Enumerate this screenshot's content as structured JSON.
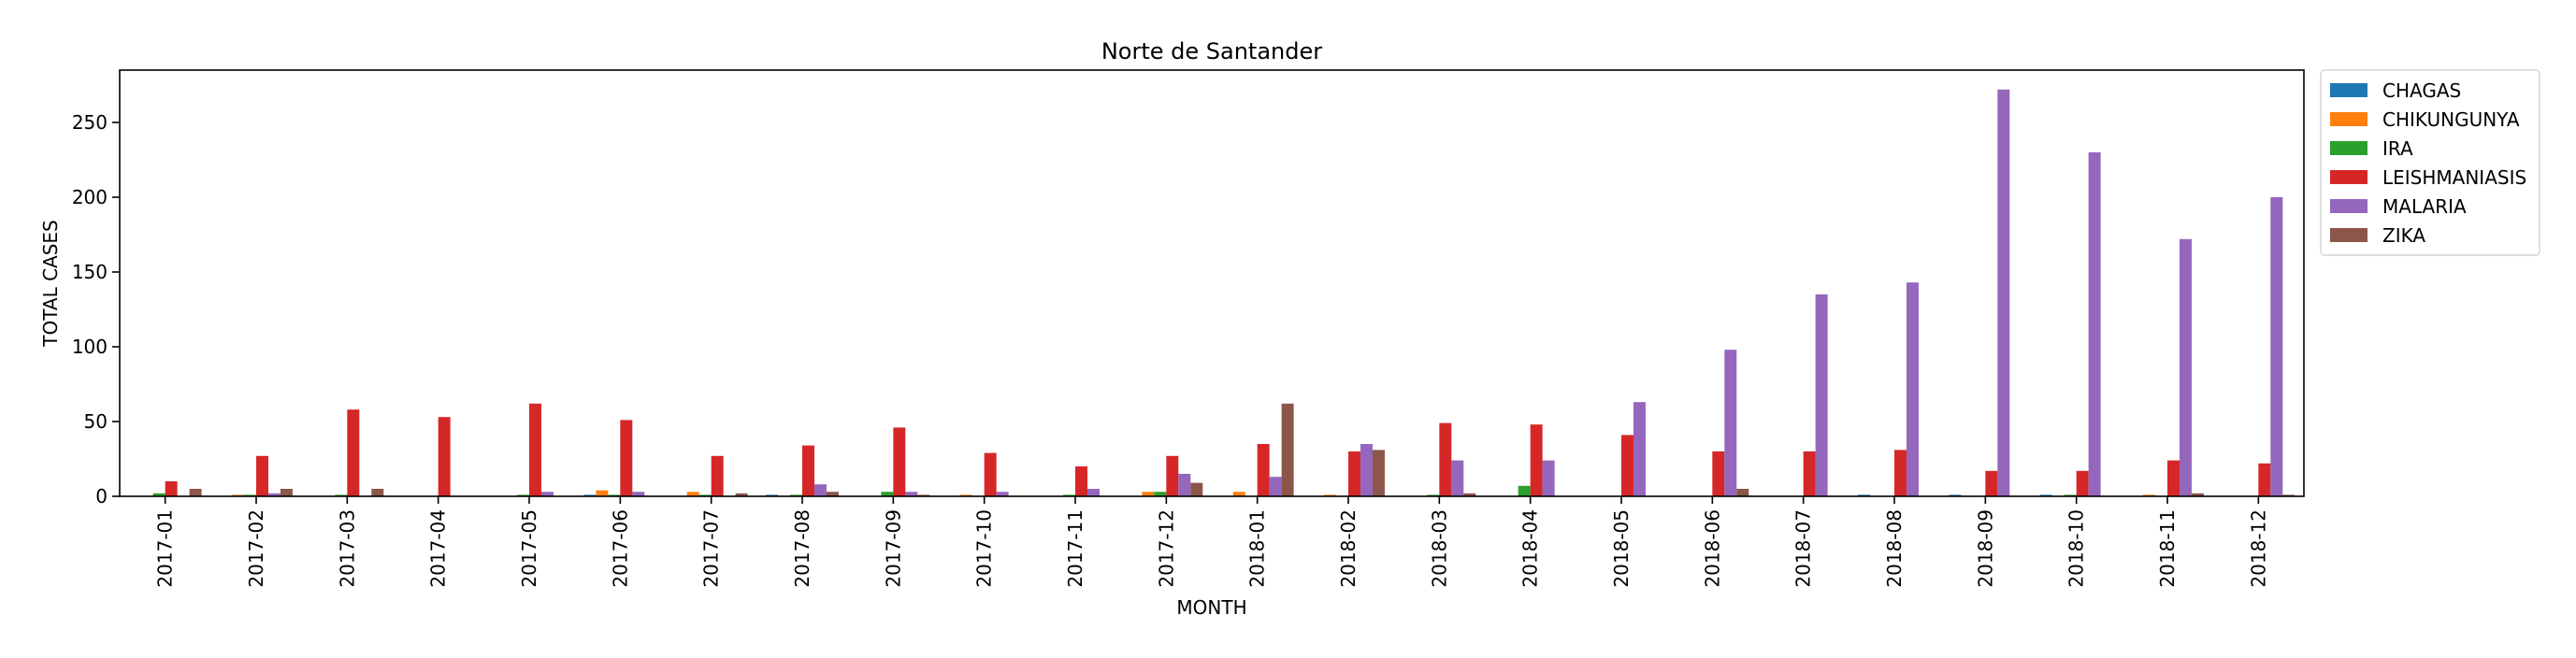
{
  "chart_data": {
    "type": "bar",
    "title": "Norte de Santander",
    "xlabel": "MONTH",
    "ylabel": "TOTAL CASES",
    "ylim": [
      0,
      285
    ],
    "yticks": [
      0,
      50,
      100,
      150,
      200,
      250
    ],
    "grid": false,
    "legend_position": "outside-right-top",
    "categories": [
      "2017-01",
      "2017-02",
      "2017-03",
      "2017-04",
      "2017-05",
      "2017-06",
      "2017-07",
      "2017-08",
      "2017-09",
      "2017-10",
      "2017-11",
      "2017-12",
      "2018-01",
      "2018-02",
      "2018-03",
      "2018-04",
      "2018-05",
      "2018-06",
      "2018-07",
      "2018-08",
      "2018-09",
      "2018-10",
      "2018-11",
      "2018-12"
    ],
    "series": [
      {
        "name": "CHAGAS",
        "color": "#1f77b4",
        "values": [
          0,
          0,
          0,
          0,
          0,
          1,
          0,
          1,
          0,
          0,
          0,
          0,
          0,
          0,
          0,
          0,
          0,
          0,
          0,
          1,
          1,
          1,
          0,
          0
        ]
      },
      {
        "name": "CHIKUNGUNYA",
        "color": "#ff7f0e",
        "values": [
          0,
          1,
          0,
          0,
          0,
          4,
          3,
          0,
          0,
          1,
          0,
          3,
          3,
          1,
          0,
          0,
          0,
          0,
          0,
          0,
          0,
          0,
          1,
          0
        ]
      },
      {
        "name": "IRA",
        "color": "#2ca02c",
        "values": [
          2,
          1,
          1,
          0,
          1,
          1,
          1,
          1,
          3,
          0,
          1,
          3,
          0,
          0,
          1,
          7,
          0,
          0,
          0,
          0,
          0,
          1,
          0,
          0
        ]
      },
      {
        "name": "LEISHMANIASIS",
        "color": "#d62728",
        "values": [
          10,
          27,
          58,
          53,
          62,
          51,
          27,
          34,
          46,
          29,
          20,
          27,
          35,
          30,
          49,
          48,
          41,
          30,
          30,
          31,
          17,
          17,
          24,
          22
        ]
      },
      {
        "name": "MALARIA",
        "color": "#9467bd",
        "values": [
          0,
          2,
          0,
          0,
          3,
          3,
          0,
          8,
          3,
          3,
          5,
          15,
          13,
          35,
          24,
          24,
          63,
          98,
          135,
          143,
          272,
          230,
          172,
          200
        ]
      },
      {
        "name": "ZIKA",
        "color": "#8c564b",
        "values": [
          5,
          5,
          5,
          0,
          0,
          0,
          2,
          3,
          1,
          0,
          0,
          9,
          62,
          31,
          2,
          0,
          0,
          5,
          0,
          0,
          0,
          0,
          2,
          1
        ]
      }
    ]
  }
}
